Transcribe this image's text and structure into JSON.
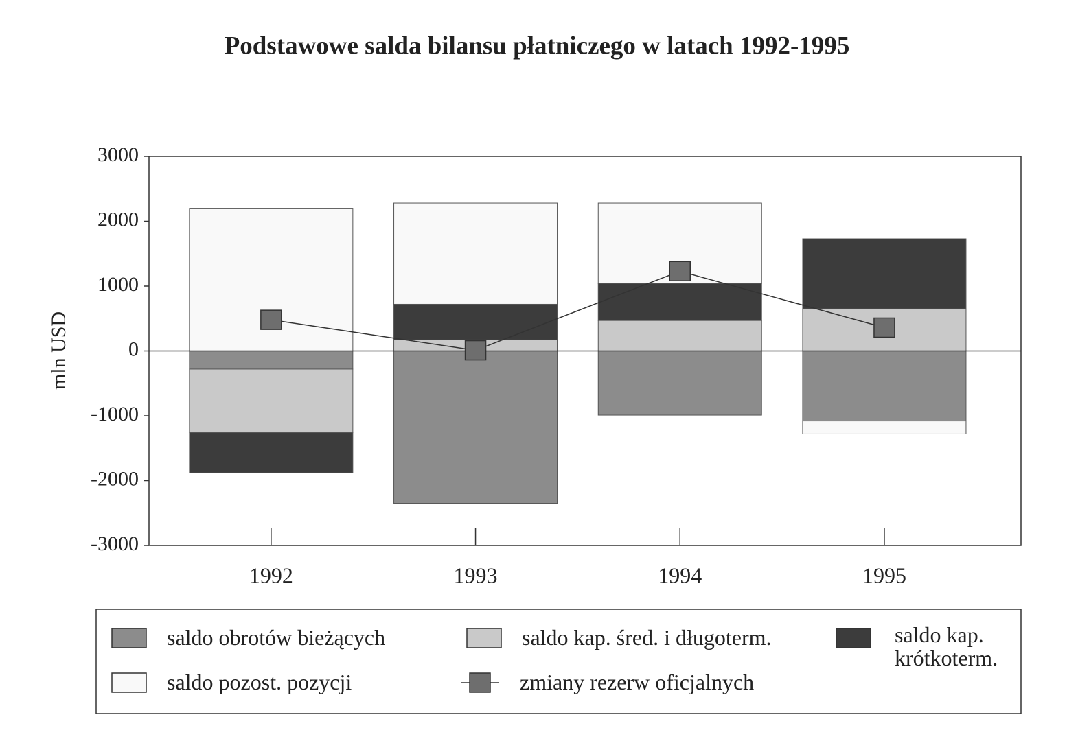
{
  "chart_data": {
    "type": "bar",
    "title": "Podstawowe salda bilansu płatniczego w latach 1992-1995",
    "ylabel": "mln USD",
    "categories": [
      "1992",
      "1993",
      "1994",
      "1995"
    ],
    "series": [
      {
        "name": "saldo obrotów bieżących",
        "type": "bar",
        "color": "#8c8c8c",
        "values": [
          -280,
          -2350,
          -990,
          -1080
        ]
      },
      {
        "name": "saldo kap. śred. i długoterm.",
        "type": "bar",
        "color": "#c9c9c9",
        "values": [
          -980,
          170,
          470,
          650
        ]
      },
      {
        "name": "saldo kap. krótkoterm.",
        "type": "bar",
        "color": "#3c3c3c",
        "values": [
          -620,
          550,
          570,
          1080
        ]
      },
      {
        "name": "saldo pozost. pozycji",
        "type": "bar",
        "color": "#f9f9f9",
        "values": [
          2200,
          1560,
          1240,
          -200
        ]
      },
      {
        "name": "zmiany rezerw oficjalnych",
        "type": "line",
        "color": "#6e6e6e",
        "values": [
          480,
          10,
          1230,
          360
        ]
      }
    ],
    "ylim": [
      -3000,
      3000
    ],
    "yticks": [
      -3000,
      -2000,
      -1000,
      0,
      1000,
      2000,
      3000
    ]
  }
}
